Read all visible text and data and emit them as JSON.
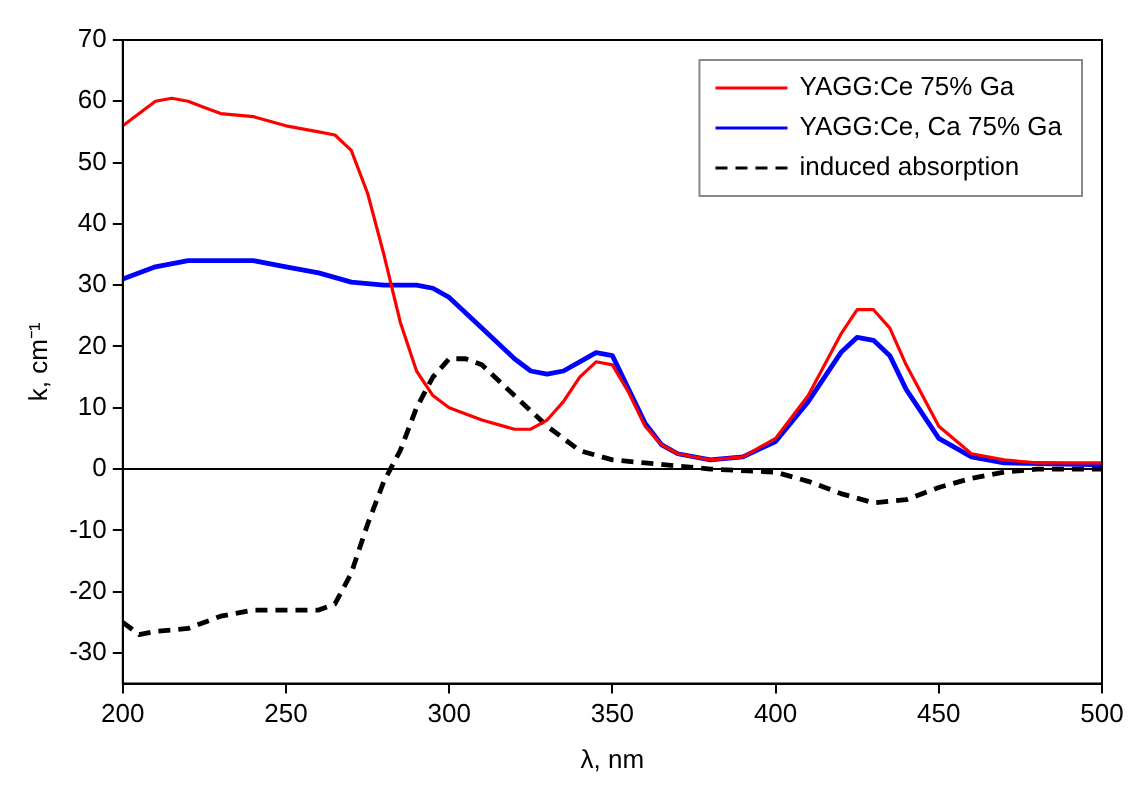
{
  "chart_data": {
    "type": "line",
    "xlabel": "λ, nm",
    "ylabel": "k, cm⁻¹",
    "xlim": [
      200,
      500
    ],
    "xticks": [
      200,
      250,
      300,
      350,
      400,
      450,
      500
    ],
    "ylim": [
      -35,
      70
    ],
    "yticks": [
      -30,
      -20,
      -10,
      0,
      10,
      20,
      30,
      40,
      50,
      60,
      70
    ],
    "grid": false,
    "legend": "top right",
    "marker": "none",
    "ref_lines": [
      {
        "axis": "y",
        "value": 0,
        "color": "#000000"
      }
    ],
    "series": [
      {
        "name": "YAGG:Ce 75% Ga",
        "color": "#ff0000",
        "line_style": "solid",
        "x": [
          200,
          205,
          210,
          215,
          220,
          225,
          230,
          240,
          250,
          260,
          265,
          270,
          275,
          280,
          285,
          290,
          295,
          300,
          310,
          320,
          325,
          330,
          335,
          340,
          345,
          350,
          355,
          360,
          365,
          370,
          380,
          390,
          400,
          410,
          420,
          425,
          430,
          435,
          440,
          450,
          460,
          470,
          480,
          500
        ],
        "values": [
          56,
          58,
          60,
          60.5,
          60,
          59,
          58,
          57.5,
          56,
          55,
          54.5,
          52,
          45,
          35,
          24,
          16,
          12,
          10,
          8,
          6.5,
          6.5,
          8,
          11,
          15,
          17.5,
          17,
          12.5,
          7,
          4,
          2.5,
          1.5,
          2,
          5,
          12,
          22,
          26,
          26,
          23,
          17,
          7,
          2.5,
          1.5,
          1,
          1
        ]
      },
      {
        "name": "YAGG:Ce, Ca 75% Ga",
        "color": "#0000ff",
        "line_style": "solid",
        "x": [
          200,
          210,
          220,
          230,
          240,
          250,
          260,
          270,
          280,
          290,
          295,
          300,
          310,
          320,
          325,
          330,
          335,
          340,
          345,
          350,
          355,
          360,
          365,
          370,
          380,
          390,
          400,
          410,
          420,
          425,
          430,
          435,
          440,
          450,
          460,
          470,
          500
        ],
        "values": [
          31,
          33,
          34,
          34,
          34,
          33,
          32,
          30.5,
          30,
          30,
          29.5,
          28,
          23,
          18,
          16,
          15.5,
          16,
          17.5,
          19,
          18.5,
          13,
          7.5,
          4,
          2.5,
          1.5,
          2,
          4.5,
          11,
          19,
          21.5,
          21,
          18.5,
          13,
          5,
          2,
          1,
          0.7
        ]
      },
      {
        "name": "induced absorption",
        "color": "#000000",
        "line_style": "dashed",
        "x": [
          200,
          205,
          210,
          220,
          230,
          240,
          250,
          260,
          265,
          270,
          275,
          280,
          285,
          290,
          295,
          300,
          305,
          310,
          320,
          330,
          340,
          350,
          360,
          370,
          380,
          400,
          410,
          420,
          430,
          440,
          450,
          460,
          470,
          480,
          500
        ],
        "values": [
          -25,
          -27,
          -26.5,
          -26,
          -24,
          -23,
          -23,
          -23,
          -22,
          -17,
          -9,
          -2,
          3,
          10,
          15,
          18,
          18,
          17,
          12,
          7,
          3,
          1.5,
          1,
          0.5,
          0,
          -0.5,
          -2,
          -4,
          -5.5,
          -5,
          -3,
          -1.5,
          -0.5,
          0,
          0
        ]
      }
    ]
  }
}
